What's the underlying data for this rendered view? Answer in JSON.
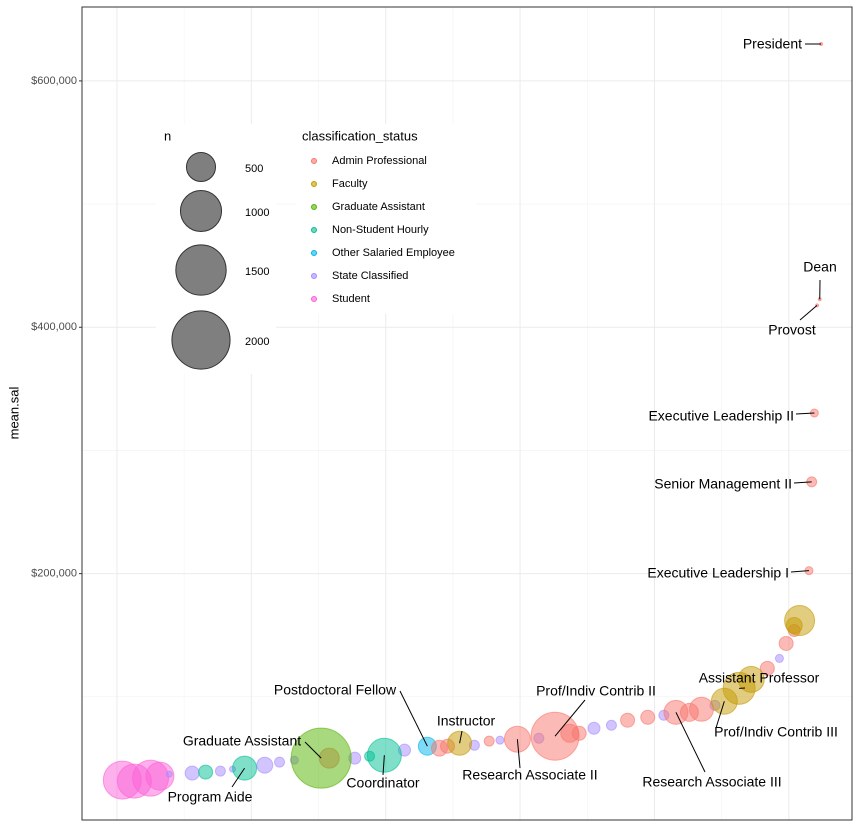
{
  "chart_data": {
    "type": "scatter",
    "y_label": "mean.sal",
    "xlim": [
      -26,
      547
    ],
    "ylim": [
      0,
      660000
    ],
    "xticks": [
      0,
      100,
      200,
      300,
      400,
      500
    ],
    "xminor_ticks": [
      50,
      150,
      250,
      350,
      450
    ],
    "yticks": [
      {
        "value": 200000,
        "label": "$200,000"
      },
      {
        "value": 400000,
        "label": "$400,000"
      },
      {
        "value": 600000,
        "label": "$600,000"
      }
    ],
    "yminor_ticks": [
      100000,
      300000,
      500000
    ],
    "grid": true,
    "size_legend": {
      "title": "n",
      "breaks": [
        500,
        1000,
        1500,
        2000
      ]
    },
    "color_legend_title": "classification_status",
    "series": [
      {
        "name": "Admin Professional",
        "color": "#F8766D",
        "x": [
          158,
          240,
          246,
          277,
          298,
          326,
          337,
          344,
          380,
          395,
          416,
          426,
          435,
          484,
          498,
          504,
          515,
          517,
          519,
          521,
          523,
          524
        ],
        "values": [
          50200,
          58300,
          59900,
          64000,
          65600,
          68000,
          70400,
          70400,
          81000,
          83400,
          87400,
          87400,
          89900,
          123100,
          143300,
          153800,
          202400,
          274500,
          330400,
          417800,
          422700,
          630000
        ],
        "sizes": [
          237,
          151,
          116,
          59,
          400,
          1363,
          192,
          116,
          116,
          116,
          341,
          192,
          341,
          116,
          116,
          85,
          38,
          59,
          38,
          1,
          1,
          1
        ],
        "labels": [
          null,
          null,
          null,
          null,
          "Research Associate II",
          "Prof/Indiv Contrib II",
          null,
          null,
          null,
          null,
          "Research Associate III",
          null,
          null,
          null,
          null,
          null,
          "Executive Leadership I",
          "Senior Management II",
          "Executive Leadership II",
          "Provost",
          "Dean",
          "President"
        ]
      },
      {
        "name": "Faculty",
        "color": "#C49A00",
        "x": [
          255,
          452,
          463,
          472,
          504,
          508
        ],
        "values": [
          62300,
          96400,
          106900,
          114200,
          157900,
          161900
        ],
        "sizes": [
          341,
          400,
          606,
          400,
          151,
          533
        ],
        "labels": [
          "Instructor",
          "Prof/Indiv Contrib III",
          "Assistant Professor",
          null,
          null,
          null
        ]
      },
      {
        "name": "Graduate Assistant",
        "color": "#53B400",
        "x": [
          152
        ],
        "values": [
          50200
        ],
        "sizes": [
          2130
        ],
        "labels": [
          "Graduate Assistant"
        ]
      },
      {
        "name": "Non-Student Hourly",
        "color": "#00C094",
        "x": [
          66,
          95,
          188,
          199
        ],
        "values": [
          38900,
          42100,
          51800,
          52600
        ],
        "sizes": [
          116,
          341,
          59,
          684
        ],
        "labels": [
          null,
          "Program Aide",
          null,
          "Coordinator"
        ]
      },
      {
        "name": "Other Salaried Employee",
        "color": "#00B6EB",
        "x": [
          231
        ],
        "values": [
          59900
        ],
        "sizes": [
          192
        ],
        "labels": [
          "Postdoctoral Fellow"
        ]
      },
      {
        "name": "State Classified",
        "color": "#A58AFF",
        "x": [
          39,
          56,
          77,
          86,
          110,
          121,
          132,
          177,
          214,
          266,
          285,
          314,
          355,
          368,
          407,
          445,
          493
        ],
        "values": [
          37200,
          38100,
          39700,
          41300,
          44500,
          47000,
          48600,
          50200,
          56700,
          60700,
          64800,
          66400,
          74500,
          76900,
          85000,
          93100,
          131200
        ],
        "sizes": [
          21,
          116,
          59,
          21,
          151,
          59,
          38,
          85,
          85,
          59,
          38,
          59,
          85,
          59,
          59,
          59,
          38
        ],
        "labels": [
          null,
          null,
          null,
          null,
          null,
          null,
          null,
          null,
          null,
          null,
          null,
          null,
          null,
          null,
          null,
          null,
          null
        ]
      },
      {
        "name": "Student",
        "color": "#FB61D7",
        "x": [
          4,
          13,
          25,
          32
        ],
        "values": [
          32400,
          31600,
          34000,
          35600
        ],
        "sizes": [
          854,
          684,
          767,
          464
        ],
        "labels": [
          null,
          null,
          null,
          null
        ]
      }
    ]
  }
}
